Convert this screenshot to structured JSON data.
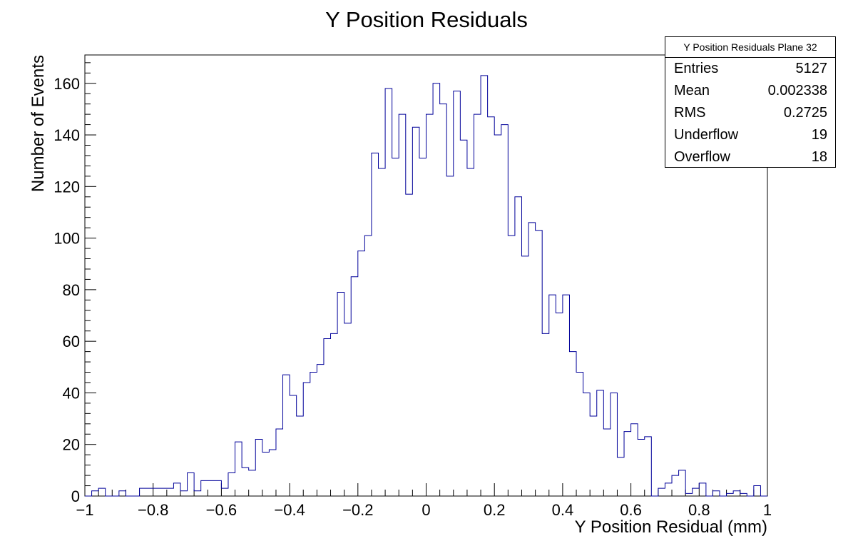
{
  "chart_data": {
    "type": "histogram",
    "title": "Y Position Residuals",
    "xlabel": "Y Position Residual (mm)",
    "ylabel": "Number of Events",
    "xlim": [
      -1,
      1
    ],
    "ylim": [
      0,
      171
    ],
    "x_ticks": [
      "−1",
      "−0.8",
      "−0.6",
      "−0.4",
      "−0.2",
      "0",
      "0.2",
      "0.4",
      "0.6",
      "0.8",
      "1"
    ],
    "y_ticks": [
      "0",
      "20",
      "40",
      "60",
      "80",
      "100",
      "120",
      "140",
      "160"
    ],
    "bin_edges_range": [
      -1,
      1
    ],
    "bin_count": 100,
    "line_color": "#000099",
    "values": [
      0,
      2,
      3,
      0,
      0,
      2,
      0,
      0,
      3,
      3,
      3,
      3,
      3,
      5,
      2,
      9,
      2,
      6,
      6,
      6,
      3,
      9,
      21,
      11,
      10,
      22,
      17,
      18,
      26,
      47,
      39,
      31,
      44,
      48,
      51,
      61,
      63,
      79,
      67,
      85,
      95,
      101,
      133,
      127,
      158,
      131,
      148,
      117,
      143,
      131,
      148,
      160,
      152,
      124,
      157,
      138,
      127,
      148,
      163,
      147,
      140,
      144,
      101,
      116,
      93,
      106,
      103,
      63,
      78,
      71,
      78,
      56,
      48,
      40,
      31,
      41,
      26,
      40,
      15,
      25,
      28,
      22,
      23,
      0,
      3,
      5,
      8,
      10,
      1,
      3,
      5,
      0,
      2,
      0,
      1,
      2,
      1,
      0,
      4,
      0
    ]
  },
  "stats_box": {
    "title": "Y Position Residuals Plane 32",
    "rows": [
      {
        "label": "Entries",
        "value": "5127"
      },
      {
        "label": "Mean",
        "value": "0.002338"
      },
      {
        "label": "RMS",
        "value": "0.2725"
      },
      {
        "label": "Underflow",
        "value": "19"
      },
      {
        "label": "Overflow",
        "value": "18"
      }
    ]
  }
}
